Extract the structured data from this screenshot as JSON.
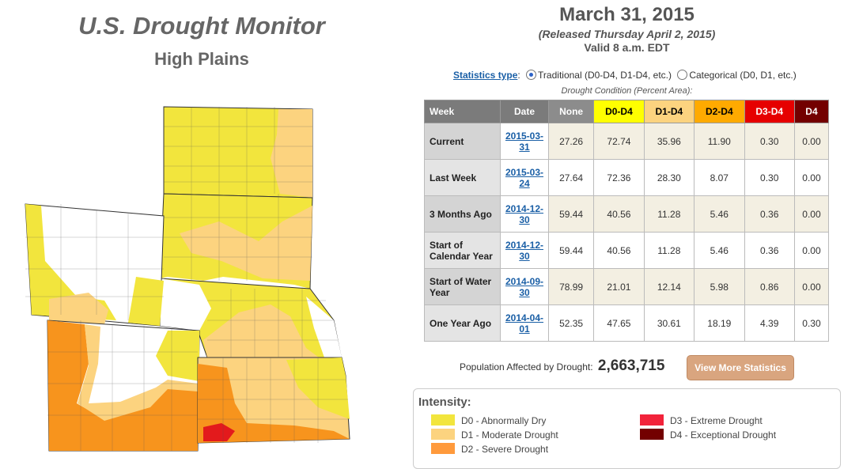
{
  "header": {
    "title": "U.S. Drought Monitor",
    "region": "High Plains",
    "date": "March 31, 2015",
    "released": "(Released Thursday April 2, 2015)",
    "valid": "Valid 8 a.m. EDT"
  },
  "statistics_type": {
    "label": "Statistics type",
    "options": [
      "Traditional (D0-D4, D1-D4, etc.)",
      "Categorical (D0, D1, etc.)"
    ],
    "selected": "Traditional (D0-D4, D1-D4, etc.)"
  },
  "table": {
    "caption": "Drought Condition (Percent Area):",
    "headers": [
      "Week",
      "Date",
      "None",
      "D0-D4",
      "D1-D4",
      "D2-D4",
      "D3-D4",
      "D4"
    ],
    "rows": [
      {
        "week": "Current",
        "date": "2015-03-31",
        "values": [
          "27.26",
          "72.74",
          "35.96",
          "11.90",
          "0.30",
          "0.00"
        ]
      },
      {
        "week": "Last Week",
        "date": "2015-03-24",
        "values": [
          "27.64",
          "72.36",
          "28.30",
          "8.07",
          "0.30",
          "0.00"
        ]
      },
      {
        "week": "3 Months Ago",
        "date": "2014-12-30",
        "values": [
          "59.44",
          "40.56",
          "11.28",
          "5.46",
          "0.36",
          "0.00"
        ]
      },
      {
        "week": "Start of Calendar Year",
        "date": "2014-12-30",
        "values": [
          "59.44",
          "40.56",
          "11.28",
          "5.46",
          "0.36",
          "0.00"
        ]
      },
      {
        "week": "Start of Water Year",
        "date": "2014-09-30",
        "values": [
          "78.99",
          "21.01",
          "12.14",
          "5.98",
          "0.86",
          "0.00"
        ]
      },
      {
        "week": "One Year Ago",
        "date": "2014-04-01",
        "values": [
          "52.35",
          "47.65",
          "30.61",
          "18.19",
          "4.39",
          "0.30"
        ]
      }
    ]
  },
  "population": {
    "label": "Population Affected by Drought:",
    "value": "2,663,715"
  },
  "view_more_button": "View More Statistics",
  "legend": {
    "title": "Intensity:",
    "items": [
      {
        "label": "D0 - Abnormally Dry",
        "color": "#f2e53d"
      },
      {
        "label": "D1 - Moderate Drought",
        "color": "#fcd37f"
      },
      {
        "label": "D2 - Severe Drought",
        "color": "#ff9a3c"
      },
      {
        "label": "D3 - Extreme Drought",
        "color": "#f2233a"
      },
      {
        "label": "D4 - Exceptional Drought",
        "color": "#730000"
      }
    ]
  },
  "colors": {
    "d0": "#f2e53d",
    "d1": "#fcd37f",
    "d2": "#f7941d",
    "d3": "#e31a1c",
    "none": "#ffffff",
    "link": "#1a5fa6",
    "button": "#d9a57f"
  }
}
